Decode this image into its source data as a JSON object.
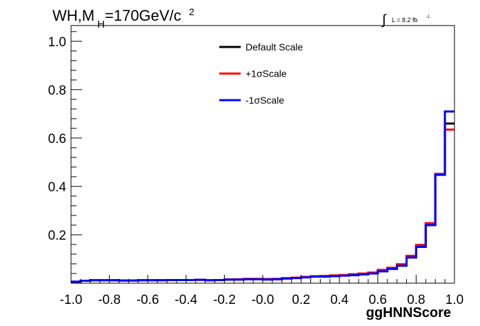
{
  "chart_data": {
    "type": "line",
    "step": true,
    "title_main": "WH,M",
    "title_sub": "H",
    "title_rest": "=170GeV/c",
    "title_sup": "2",
    "lumi_label": "L = 8.2 fb",
    "lumi_sup": "-1",
    "xlabel": "ggHNNScore",
    "ylabel": "",
    "xlim": [
      -1.0,
      1.0
    ],
    "ylim": [
      0,
      1.065
    ],
    "x_ticks": [
      -1.0,
      -0.8,
      -0.6,
      -0.4,
      -0.2,
      0.0,
      0.2,
      0.4,
      0.6,
      0.8,
      1.0
    ],
    "x_tick_labels": [
      "-1.0",
      "-0.8",
      "-0.6",
      "-0.4",
      "-0.2",
      "-0.0",
      "0.2",
      "0.4",
      "0.6",
      "0.8",
      "1.0"
    ],
    "y_ticks": [
      0.2,
      0.4,
      0.6,
      0.8,
      1.0
    ],
    "y_tick_labels": [
      "0.2",
      "0.4",
      "0.6",
      "0.8",
      "1.0"
    ],
    "grid": false,
    "legend_position": "top-center",
    "bin_edges": [
      -1.0,
      -0.95,
      -0.9,
      -0.85,
      -0.8,
      -0.75,
      -0.7,
      -0.65,
      -0.6,
      -0.55,
      -0.5,
      -0.45,
      -0.4,
      -0.35,
      -0.3,
      -0.25,
      -0.2,
      -0.15,
      -0.1,
      -0.05,
      0.0,
      0.05,
      0.1,
      0.15,
      0.2,
      0.25,
      0.3,
      0.35,
      0.4,
      0.45,
      0.5,
      0.55,
      0.6,
      0.65,
      0.7,
      0.75,
      0.8,
      0.85,
      0.9,
      0.95,
      1.0
    ],
    "series": [
      {
        "name": "Default Scale",
        "color": "#000000",
        "values": [
          0.006,
          0.01,
          0.012,
          0.012,
          0.012,
          0.011,
          0.011,
          0.012,
          0.012,
          0.012,
          0.013,
          0.013,
          0.013,
          0.014,
          0.012,
          0.013,
          0.015,
          0.015,
          0.017,
          0.017,
          0.016,
          0.017,
          0.02,
          0.022,
          0.025,
          0.028,
          0.028,
          0.03,
          0.033,
          0.035,
          0.038,
          0.042,
          0.052,
          0.062,
          0.075,
          0.11,
          0.155,
          0.245,
          0.45,
          0.66
        ]
      },
      {
        "name": "+1σScale",
        "color": "#ff0000",
        "values": [
          0.006,
          0.01,
          0.012,
          0.012,
          0.012,
          0.011,
          0.011,
          0.012,
          0.012,
          0.012,
          0.013,
          0.013,
          0.013,
          0.014,
          0.012,
          0.013,
          0.015,
          0.016,
          0.018,
          0.018,
          0.017,
          0.018,
          0.021,
          0.023,
          0.026,
          0.029,
          0.03,
          0.032,
          0.034,
          0.037,
          0.04,
          0.044,
          0.055,
          0.064,
          0.078,
          0.113,
          0.158,
          0.248,
          0.452,
          0.635
        ]
      },
      {
        "name": "-1σScale",
        "color": "#0000ff",
        "values": [
          0.006,
          0.01,
          0.012,
          0.012,
          0.012,
          0.011,
          0.011,
          0.012,
          0.012,
          0.012,
          0.013,
          0.013,
          0.013,
          0.014,
          0.012,
          0.013,
          0.015,
          0.015,
          0.016,
          0.016,
          0.015,
          0.016,
          0.019,
          0.021,
          0.024,
          0.027,
          0.027,
          0.029,
          0.031,
          0.033,
          0.036,
          0.04,
          0.049,
          0.059,
          0.072,
          0.106,
          0.15,
          0.24,
          0.448,
          0.71
        ]
      }
    ]
  }
}
